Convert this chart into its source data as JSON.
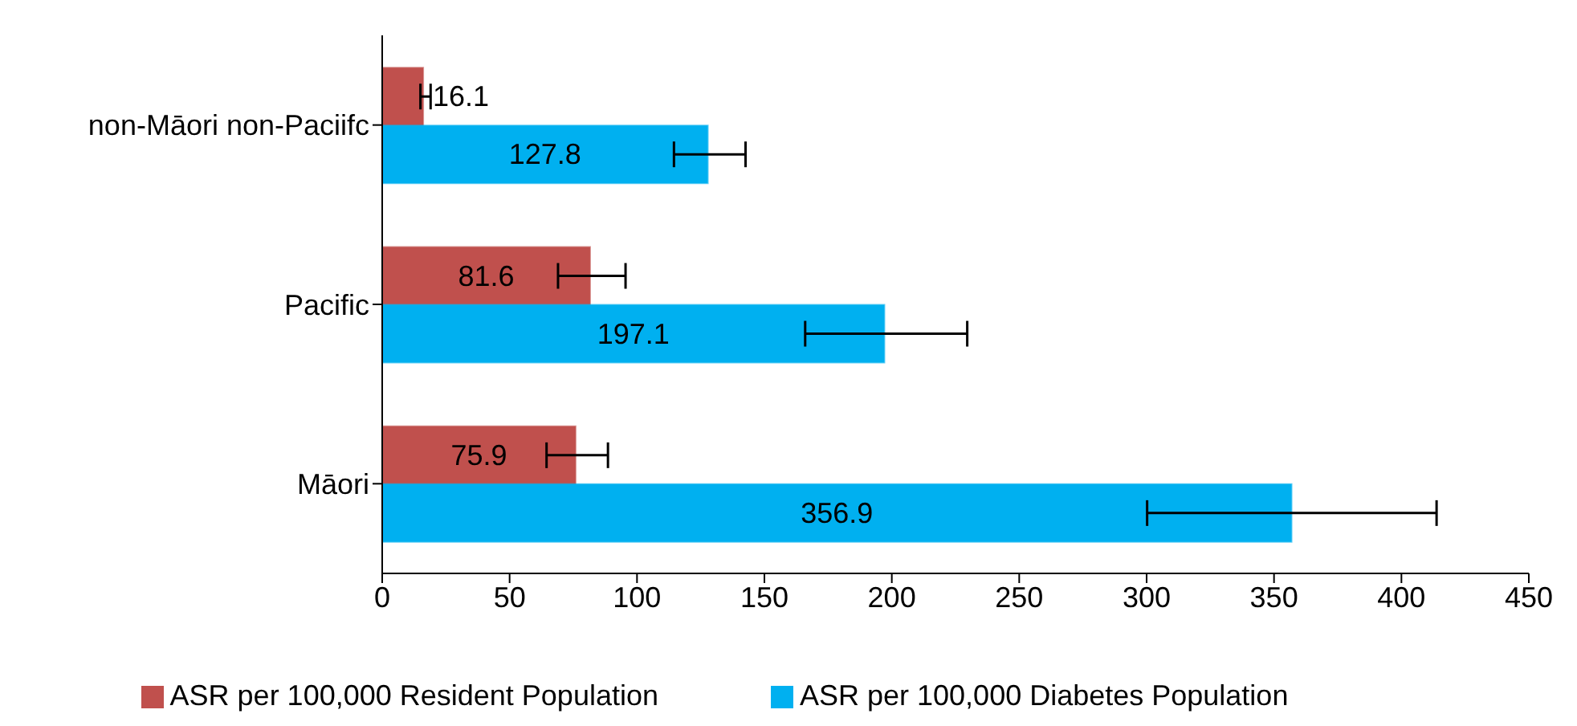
{
  "chart_data": {
    "type": "bar",
    "orientation": "horizontal",
    "categories": [
      "non-Māori non-Paciifc",
      "Pacific",
      "Māori"
    ],
    "series": [
      {
        "name": "ASR per 100,000 Resident Population",
        "color": "#c0504d",
        "values": [
          16.1,
          81.6,
          75.9
        ],
        "errors": [
          [
            15,
            19
          ],
          [
            69,
            95.5
          ],
          [
            64.5,
            88.6
          ]
        ]
      },
      {
        "name": "ASR per 100,000 Diabetes Population",
        "color": "#00b0f0",
        "values": [
          127.8,
          197.1,
          356.9
        ],
        "errors": [
          [
            114.5,
            142.6
          ],
          [
            166,
            229.6
          ],
          [
            300.2,
            413.8
          ]
        ]
      }
    ],
    "xlim": [
      0,
      450
    ],
    "xticks": [
      0,
      50,
      100,
      150,
      200,
      250,
      300,
      350,
      400,
      450
    ],
    "data_labels": true,
    "grid": false,
    "legend": "bottom"
  }
}
